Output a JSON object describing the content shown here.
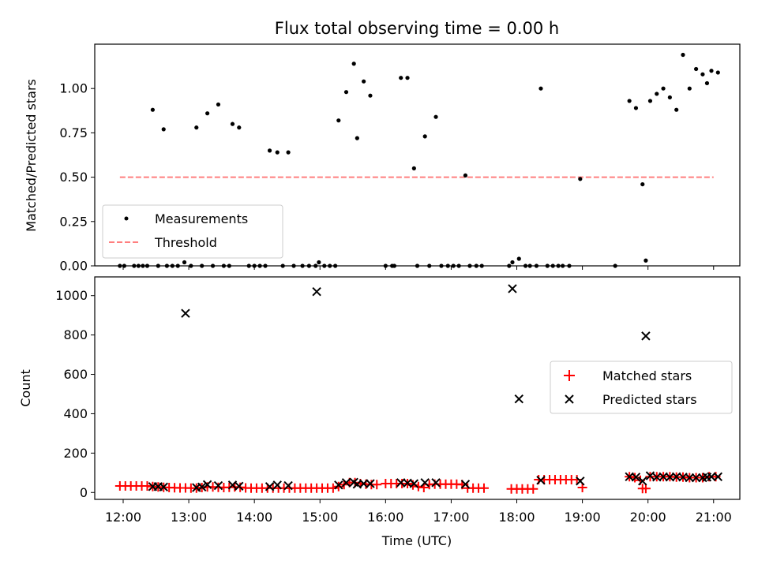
{
  "chart_data": [
    {
      "type": "scatter",
      "title": "Flux total observing time = 0.00 h",
      "ylabel": "Matched/Predicted stars",
      "xlabel": "",
      "xlim": [
        "11:34",
        "21:24"
      ],
      "ylim": [
        0.0,
        1.25
      ],
      "yticks": [
        0.0,
        0.25,
        0.5,
        0.75,
        1.0
      ],
      "ytick_labels": [
        "0.00",
        "0.25",
        "0.50",
        "0.75",
        "1.00"
      ],
      "xticks": [
        "12:00",
        "13:00",
        "14:00",
        "15:00",
        "16:00",
        "17:00",
        "18:00",
        "19:00",
        "20:00",
        "21:00"
      ],
      "grid": false,
      "legend_position": "lower-left",
      "series": [
        {
          "name": "Measurements",
          "marker": "dot",
          "color": "#000000",
          "points": [
            [
              "12:27",
              0.88
            ],
            [
              "12:37",
              0.77
            ],
            [
              "13:07",
              0.78
            ],
            [
              "13:17",
              0.86
            ],
            [
              "13:27",
              0.91
            ],
            [
              "13:40",
              0.8
            ],
            [
              "13:46",
              0.78
            ],
            [
              "14:14",
              0.65
            ],
            [
              "14:21",
              0.64
            ],
            [
              "14:31",
              0.64
            ],
            [
              "15:17",
              0.82
            ],
            [
              "15:24",
              0.98
            ],
            [
              "15:31",
              1.14
            ],
            [
              "15:34",
              0.72
            ],
            [
              "15:40",
              1.04
            ],
            [
              "15:46",
              0.96
            ],
            [
              "16:14",
              1.06
            ],
            [
              "16:20",
              1.06
            ],
            [
              "16:26",
              0.55
            ],
            [
              "16:36",
              0.73
            ],
            [
              "16:46",
              0.84
            ],
            [
              "17:13",
              0.51
            ],
            [
              "18:22",
              1.0
            ],
            [
              "18:58",
              0.49
            ],
            [
              "19:43",
              0.93
            ],
            [
              "19:49",
              0.89
            ],
            [
              "19:55",
              0.46
            ],
            [
              "19:58",
              0.03
            ],
            [
              "20:02",
              0.93
            ],
            [
              "20:08",
              0.97
            ],
            [
              "20:14",
              1.0
            ],
            [
              "20:20",
              0.95
            ],
            [
              "20:26",
              0.88
            ],
            [
              "20:32",
              1.19
            ],
            [
              "20:38",
              1.0
            ],
            [
              "20:44",
              1.11
            ],
            [
              "20:50",
              1.08
            ],
            [
              "20:54",
              1.03
            ],
            [
              "20:58",
              1.1
            ],
            [
              "21:04",
              1.09
            ],
            [
              "11:57",
              0.0
            ],
            [
              "12:01",
              0.0
            ],
            [
              "12:10",
              0.0
            ],
            [
              "12:14",
              0.0
            ],
            [
              "12:18",
              0.0
            ],
            [
              "12:22",
              0.0
            ],
            [
              "12:32",
              0.0
            ],
            [
              "12:40",
              0.0
            ],
            [
              "12:45",
              0.0
            ],
            [
              "12:50",
              0.0
            ],
            [
              "12:56",
              0.02
            ],
            [
              "13:02",
              0.0
            ],
            [
              "13:12",
              0.0
            ],
            [
              "13:22",
              0.0
            ],
            [
              "13:32",
              0.0
            ],
            [
              "13:37",
              0.0
            ],
            [
              "13:55",
              0.0
            ],
            [
              "14:00",
              0.0
            ],
            [
              "14:05",
              0.0
            ],
            [
              "14:10",
              0.0
            ],
            [
              "14:26",
              0.0
            ],
            [
              "14:36",
              0.0
            ],
            [
              "14:44",
              0.0
            ],
            [
              "14:50",
              0.0
            ],
            [
              "14:56",
              0.0
            ],
            [
              "14:59",
              0.02
            ],
            [
              "15:04",
              0.0
            ],
            [
              "15:09",
              0.0
            ],
            [
              "15:14",
              0.0
            ],
            [
              "16:00",
              0.0
            ],
            [
              "16:06",
              0.0
            ],
            [
              "16:08",
              0.0
            ],
            [
              "16:29",
              0.0
            ],
            [
              "16:40",
              0.0
            ],
            [
              "16:51",
              0.0
            ],
            [
              "16:57",
              0.0
            ],
            [
              "17:02",
              0.0
            ],
            [
              "17:07",
              0.0
            ],
            [
              "17:17",
              0.0
            ],
            [
              "17:23",
              0.0
            ],
            [
              "17:28",
              0.0
            ],
            [
              "17:53",
              0.0
            ],
            [
              "17:56",
              0.02
            ],
            [
              "18:02",
              0.04
            ],
            [
              "18:08",
              0.0
            ],
            [
              "18:12",
              0.0
            ],
            [
              "18:18",
              0.0
            ],
            [
              "18:28",
              0.0
            ],
            [
              "18:33",
              0.0
            ],
            [
              "18:38",
              0.0
            ],
            [
              "18:42",
              0.0
            ],
            [
              "18:48",
              0.0
            ],
            [
              "19:30",
              0.0
            ]
          ]
        },
        {
          "name": "Threshold",
          "marker": "dashed-line",
          "color": "#ff7f7f",
          "points": [
            [
              "11:57",
              0.5
            ],
            [
              "21:00",
              0.5
            ]
          ]
        }
      ]
    },
    {
      "type": "scatter",
      "title": "",
      "ylabel": "Count",
      "xlabel": "Time (UTC)",
      "xlim": [
        "11:34",
        "21:24"
      ],
      "ylim": [
        -35,
        1095
      ],
      "yticks": [
        0,
        200,
        400,
        600,
        800,
        1000
      ],
      "xticks": [
        "12:00",
        "13:00",
        "14:00",
        "15:00",
        "16:00",
        "17:00",
        "18:00",
        "19:00",
        "20:00",
        "21:00"
      ],
      "grid": false,
      "legend_position": "center-right",
      "series": [
        {
          "name": "Matched stars",
          "marker": "plus",
          "color": "#ff0000",
          "points": [
            [
              "11:57",
              33
            ],
            [
              "12:02",
              33
            ],
            [
              "12:07",
              33
            ],
            [
              "12:12",
              33
            ],
            [
              "12:17",
              33
            ],
            [
              "12:22",
              33
            ],
            [
              "12:27",
              30
            ],
            [
              "12:32",
              28
            ],
            [
              "12:37",
              26
            ],
            [
              "12:42",
              25
            ],
            [
              "12:47",
              24
            ],
            [
              "12:52",
              23
            ],
            [
              "12:57",
              23
            ],
            [
              "13:02",
              22
            ],
            [
              "13:07",
              22
            ],
            [
              "13:12",
              25
            ],
            [
              "13:17",
              28
            ],
            [
              "13:22",
              28
            ],
            [
              "13:27",
              26
            ],
            [
              "13:32",
              25
            ],
            [
              "13:37",
              26
            ],
            [
              "13:42",
              28
            ],
            [
              "13:47",
              26
            ],
            [
              "13:52",
              23
            ],
            [
              "13:57",
              22
            ],
            [
              "14:02",
              22
            ],
            [
              "14:07",
              22
            ],
            [
              "14:12",
              22
            ],
            [
              "14:17",
              22
            ],
            [
              "14:22",
              22
            ],
            [
              "14:27",
              22
            ],
            [
              "14:32",
              22
            ],
            [
              "14:37",
              22
            ],
            [
              "14:42",
              22
            ],
            [
              "14:47",
              22
            ],
            [
              "14:52",
              22
            ],
            [
              "14:57",
              22
            ],
            [
              "15:02",
              22
            ],
            [
              "15:07",
              22
            ],
            [
              "15:12",
              22
            ],
            [
              "15:17",
              30
            ],
            [
              "15:22",
              40
            ],
            [
              "15:27",
              50
            ],
            [
              "15:32",
              50
            ],
            [
              "15:37",
              45
            ],
            [
              "15:42",
              42
            ],
            [
              "15:47",
              40
            ],
            [
              "15:52",
              40
            ],
            [
              "16:00",
              45
            ],
            [
              "16:05",
              45
            ],
            [
              "16:10",
              45
            ],
            [
              "16:15",
              45
            ],
            [
              "16:20",
              45
            ],
            [
              "16:25",
              38
            ],
            [
              "16:30",
              30
            ],
            [
              "16:35",
              25
            ],
            [
              "16:40",
              40
            ],
            [
              "16:45",
              42
            ],
            [
              "16:50",
              42
            ],
            [
              "16:55",
              42
            ],
            [
              "17:00",
              42
            ],
            [
              "17:05",
              42
            ],
            [
              "17:10",
              40
            ],
            [
              "17:15",
              22
            ],
            [
              "17:20",
              22
            ],
            [
              "17:25",
              22
            ],
            [
              "17:30",
              22
            ],
            [
              "17:55",
              18
            ],
            [
              "18:00",
              18
            ],
            [
              "18:05",
              18
            ],
            [
              "18:10",
              18
            ],
            [
              "18:15",
              18
            ],
            [
              "18:20",
              65
            ],
            [
              "18:25",
              65
            ],
            [
              "18:30",
              65
            ],
            [
              "18:35",
              65
            ],
            [
              "18:40",
              65
            ],
            [
              "18:45",
              65
            ],
            [
              "18:50",
              65
            ],
            [
              "18:55",
              65
            ],
            [
              "19:00",
              25
            ],
            [
              "19:43",
              80
            ],
            [
              "19:48",
              75
            ],
            [
              "19:53",
              62
            ],
            [
              "19:55",
              20
            ],
            [
              "19:58",
              20
            ],
            [
              "20:02",
              80
            ],
            [
              "20:08",
              80
            ],
            [
              "20:14",
              80
            ],
            [
              "20:20",
              80
            ],
            [
              "20:26",
              78
            ],
            [
              "20:32",
              78
            ],
            [
              "20:38",
              75
            ],
            [
              "20:44",
              75
            ],
            [
              "20:50",
              75
            ],
            [
              "20:56",
              80
            ],
            [
              "21:02",
              80
            ]
          ]
        },
        {
          "name": "Predicted stars",
          "marker": "x",
          "color": "#000000",
          "points": [
            [
              "12:27",
              30
            ],
            [
              "12:32",
              30
            ],
            [
              "12:37",
              28
            ],
            [
              "12:57",
              910
            ],
            [
              "13:07",
              25
            ],
            [
              "13:12",
              28
            ],
            [
              "13:17",
              40
            ],
            [
              "13:27",
              35
            ],
            [
              "13:40",
              38
            ],
            [
              "13:46",
              32
            ],
            [
              "14:14",
              30
            ],
            [
              "14:21",
              38
            ],
            [
              "14:31",
              35
            ],
            [
              "14:57",
              1020
            ],
            [
              "15:17",
              38
            ],
            [
              "15:24",
              50
            ],
            [
              "15:31",
              52
            ],
            [
              "15:34",
              42
            ],
            [
              "15:40",
              45
            ],
            [
              "15:46",
              45
            ],
            [
              "16:14",
              50
            ],
            [
              "16:20",
              48
            ],
            [
              "16:26",
              45
            ],
            [
              "16:36",
              50
            ],
            [
              "16:46",
              50
            ],
            [
              "17:13",
              42
            ],
            [
              "17:56",
              1035
            ],
            [
              "18:02",
              475
            ],
            [
              "18:22",
              62
            ],
            [
              "18:58",
              58
            ],
            [
              "19:43",
              80
            ],
            [
              "19:49",
              78
            ],
            [
              "19:55",
              58
            ],
            [
              "19:58",
              795
            ],
            [
              "20:02",
              85
            ],
            [
              "20:08",
              78
            ],
            [
              "20:14",
              80
            ],
            [
              "20:20",
              78
            ],
            [
              "20:26",
              80
            ],
            [
              "20:32",
              78
            ],
            [
              "20:38",
              75
            ],
            [
              "20:44",
              75
            ],
            [
              "20:50",
              75
            ],
            [
              "20:54",
              78
            ],
            [
              "20:58",
              80
            ],
            [
              "21:04",
              80
            ]
          ]
        }
      ]
    }
  ]
}
